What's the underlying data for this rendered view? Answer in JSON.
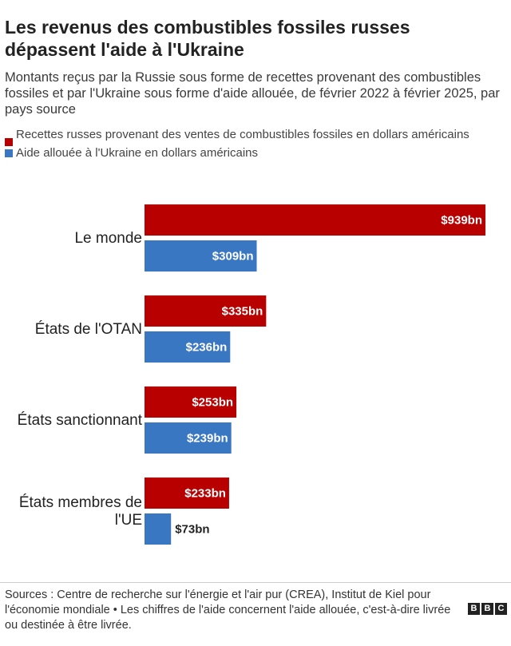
{
  "title": "Les revenus des combustibles fossiles russes dépassent l'aide à l'Ukraine",
  "subtitle": "Montants reçus par la Russie sous forme de recettes provenant des combustibles fossiles et par l'Ukraine sous forme d'aide allouée, de février 2022 à février 2025, par pays source",
  "legend": [
    {
      "label": "Recettes russes provenant des ventes de combustibles fossiles en dollars américains",
      "color": "#b80000"
    },
    {
      "label": "Aide allouée à l'Ukraine en dollars américains",
      "color": "#3a77c2"
    }
  ],
  "chart_data": {
    "type": "bar",
    "orientation": "horizontal",
    "categories": [
      "Le monde",
      "États de l'OTAN",
      "États sanctionnant",
      "États membres de l'UE"
    ],
    "series": [
      {
        "name": "Recettes russes provenant des ventes de combustibles fossiles en dollars américains",
        "values": [
          939,
          335,
          253,
          233
        ],
        "labels": [
          "$939bn",
          "$335bn",
          "$253bn",
          "$233bn"
        ],
        "color": "#b80000"
      },
      {
        "name": "Aide allouée à l'Ukraine en dollars américains",
        "values": [
          309,
          236,
          239,
          73
        ],
        "labels": [
          "$309bn",
          "$236bn",
          "$239bn",
          "$73bn"
        ],
        "color": "#3a77c2"
      }
    ],
    "unit": "milliards de dollars américains",
    "xlim": [
      0,
      939
    ],
    "grid": false,
    "legend_position": "top-left"
  },
  "source": "Sources : Centre de recherche sur l'énergie et l'air pur (CREA), Institut de Kiel pour l'économie mondiale • Les chiffres de l'aide concernent l'aide allouée, c'est-à-dire livrée ou destinée à être livrée.",
  "brand": {
    "letters": [
      "B",
      "B",
      "C"
    ]
  }
}
